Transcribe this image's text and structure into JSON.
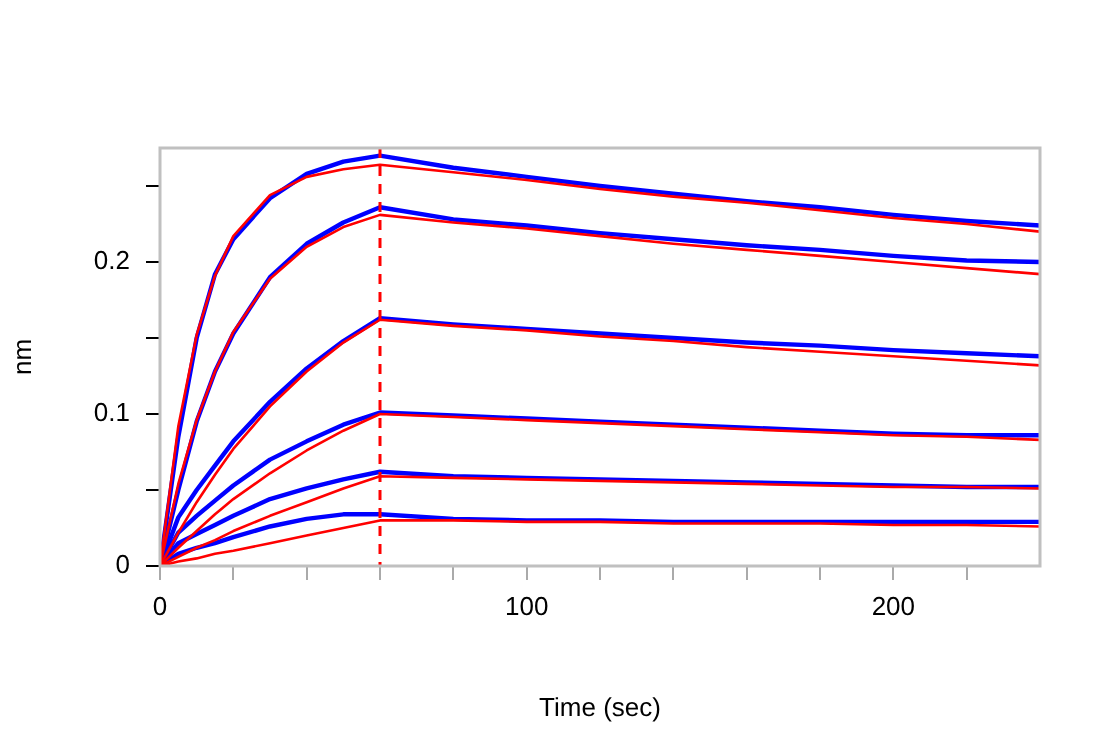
{
  "chart_data": {
    "type": "line",
    "xlabel": "Time (sec)",
    "ylabel": "nm",
    "x": [
      0,
      5,
      10,
      15,
      20,
      30,
      40,
      50,
      60,
      80,
      100,
      120,
      140,
      160,
      180,
      200,
      220,
      240
    ],
    "series": [
      {
        "color": "#0000ff",
        "values": [
          0,
          0.085,
          0.15,
          0.192,
          0.215,
          0.242,
          0.258,
          0.266,
          0.27,
          0.262,
          0.256,
          0.25,
          0.245,
          0.24,
          0.236,
          0.231,
          0.227,
          0.224
        ]
      },
      {
        "color": "#0000ff",
        "values": [
          0,
          0.05,
          0.095,
          0.128,
          0.153,
          0.19,
          0.212,
          0.226,
          0.236,
          0.228,
          0.224,
          0.219,
          0.215,
          0.211,
          0.208,
          0.204,
          0.201,
          0.2
        ]
      },
      {
        "color": "#0000ff",
        "values": [
          0,
          0.032,
          0.05,
          0.066,
          0.082,
          0.108,
          0.13,
          0.148,
          0.163,
          0.159,
          0.156,
          0.153,
          0.15,
          0.147,
          0.145,
          0.142,
          0.14,
          0.138
        ]
      },
      {
        "color": "#0000ff",
        "values": [
          0,
          0.022,
          0.033,
          0.043,
          0.053,
          0.07,
          0.082,
          0.093,
          0.101,
          0.099,
          0.097,
          0.095,
          0.093,
          0.091,
          0.089,
          0.087,
          0.086,
          0.086
        ]
      },
      {
        "color": "#0000ff",
        "values": [
          0,
          0.015,
          0.021,
          0.027,
          0.033,
          0.044,
          0.051,
          0.057,
          0.062,
          0.059,
          0.058,
          0.057,
          0.056,
          0.055,
          0.054,
          0.053,
          0.052,
          0.052
        ]
      },
      {
        "color": "#0000ff",
        "values": [
          0,
          0.008,
          0.012,
          0.015,
          0.019,
          0.026,
          0.031,
          0.034,
          0.034,
          0.031,
          0.03,
          0.03,
          0.029,
          0.029,
          0.029,
          0.029,
          0.029,
          0.029
        ]
      },
      {
        "color": "#ff0000",
        "values": [
          0,
          0.092,
          0.152,
          0.191,
          0.217,
          0.244,
          0.256,
          0.261,
          0.264,
          0.259,
          0.254,
          0.248,
          0.243,
          0.239,
          0.234,
          0.229,
          0.225,
          0.22
        ]
      },
      {
        "color": "#ff0000",
        "values": [
          0,
          0.054,
          0.096,
          0.128,
          0.154,
          0.189,
          0.21,
          0.223,
          0.231,
          0.226,
          0.222,
          0.217,
          0.212,
          0.208,
          0.204,
          0.2,
          0.196,
          0.192
        ]
      },
      {
        "color": "#ff0000",
        "values": [
          0,
          0.022,
          0.042,
          0.06,
          0.077,
          0.105,
          0.128,
          0.147,
          0.162,
          0.158,
          0.155,
          0.151,
          0.148,
          0.144,
          0.141,
          0.138,
          0.135,
          0.132
        ]
      },
      {
        "color": "#ff0000",
        "values": [
          0,
          0.012,
          0.023,
          0.034,
          0.044,
          0.061,
          0.076,
          0.089,
          0.1,
          0.098,
          0.096,
          0.094,
          0.092,
          0.09,
          0.088,
          0.086,
          0.085,
          0.083
        ]
      },
      {
        "color": "#ff0000",
        "values": [
          0,
          0.006,
          0.012,
          0.017,
          0.023,
          0.033,
          0.042,
          0.051,
          0.059,
          0.058,
          0.057,
          0.056,
          0.055,
          0.054,
          0.053,
          0.052,
          0.052,
          0.051
        ]
      },
      {
        "color": "#ff0000",
        "values": [
          0,
          0.003,
          0.005,
          0.008,
          0.01,
          0.015,
          0.02,
          0.025,
          0.03,
          0.03,
          0.029,
          0.029,
          0.028,
          0.028,
          0.028,
          0.027,
          0.027,
          0.026
        ]
      }
    ],
    "xlim": [
      0,
      240
    ],
    "xticks": [
      0,
      {
        "value": 20,
        "label": null
      },
      {
        "value": 40,
        "label": null
      },
      {
        "value": 60,
        "label": null
      },
      {
        "value": 80,
        "label": null
      },
      100,
      {
        "value": 120,
        "label": null
      },
      {
        "value": 140,
        "label": null
      },
      {
        "value": 160,
        "label": null
      },
      {
        "value": 180,
        "label": null
      },
      200,
      {
        "value": 220,
        "label": null
      }
    ],
    "ylim": [
      0,
      0.275
    ],
    "yticks": [
      0,
      {
        "value": 0.05,
        "label": null
      },
      0.1,
      {
        "value": 0.15,
        "label": null
      },
      0.2,
      {
        "value": 0.25,
        "label": null
      }
    ],
    "ref_lines": [
      {
        "axis": "x",
        "value": 60,
        "color": "#ff0000",
        "line_style": "dashed"
      }
    ]
  }
}
